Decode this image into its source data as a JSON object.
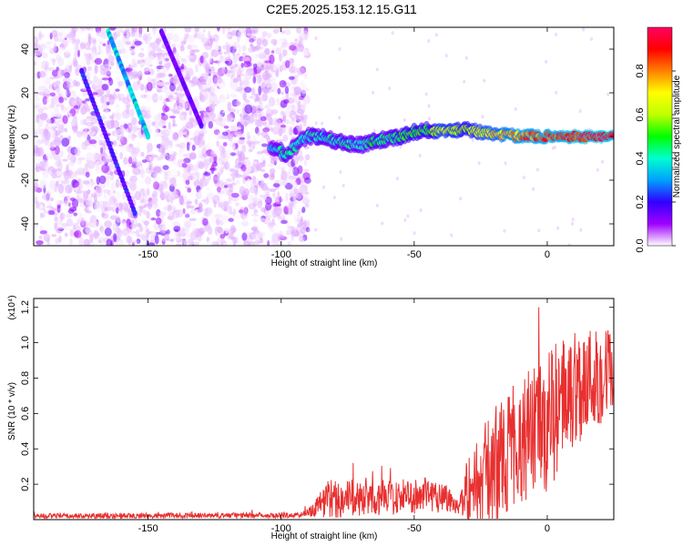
{
  "title": "C2E5.2025.153.12.15.G11",
  "chart_data": [
    {
      "type": "heatmap",
      "xlabel": "Height of straight line (km)",
      "ylabel": "Frequency (Hz)",
      "xlim": [
        -193,
        25
      ],
      "ylim": [
        -50,
        50
      ],
      "xticks": [
        -150,
        -100,
        -50,
        0
      ],
      "yticks": [
        -40,
        -20,
        0,
        20,
        40
      ],
      "colorbar": {
        "label": "Normalized spectral amplitude",
        "range": [
          0,
          1
        ],
        "ticks": [
          "0.0",
          "0.2",
          "0.4",
          "0.6",
          "0.8"
        ],
        "tick_values": [
          0.0,
          0.2,
          0.4,
          0.6,
          0.8
        ],
        "colormap": [
          "#ffffff",
          "#a000ff",
          "#3000ff",
          "#00a0ff",
          "#00ffd0",
          "#00ff00",
          "#c0ff00",
          "#ffff00",
          "#ff8000",
          "#ff0000",
          "#ff0060"
        ]
      },
      "noise_region_x": [
        -193,
        -90
      ],
      "signal_track": [
        {
          "x": -104,
          "y": -5,
          "a": 0.35
        },
        {
          "x": -98,
          "y": -8,
          "a": 0.45
        },
        {
          "x": -90,
          "y": 0,
          "a": 0.4
        },
        {
          "x": -85,
          "y": 0,
          "a": 0.45
        },
        {
          "x": -80,
          "y": -2,
          "a": 0.42
        },
        {
          "x": -75,
          "y": -3,
          "a": 0.45
        },
        {
          "x": -70,
          "y": -4,
          "a": 0.4
        },
        {
          "x": -65,
          "y": -2,
          "a": 0.5
        },
        {
          "x": -60,
          "y": -1,
          "a": 0.45
        },
        {
          "x": -55,
          "y": 0,
          "a": 0.5
        },
        {
          "x": -50,
          "y": 2,
          "a": 0.55
        },
        {
          "x": -45,
          "y": 3,
          "a": 0.5
        },
        {
          "x": -40,
          "y": 2,
          "a": 0.7
        },
        {
          "x": -35,
          "y": 3,
          "a": 0.65
        },
        {
          "x": -30,
          "y": 3,
          "a": 0.6
        },
        {
          "x": -25,
          "y": 2,
          "a": 0.7
        },
        {
          "x": -20,
          "y": 1,
          "a": 0.75
        },
        {
          "x": -15,
          "y": 1,
          "a": 0.8
        },
        {
          "x": -10,
          "y": 0,
          "a": 0.85
        },
        {
          "x": -5,
          "y": 0,
          "a": 0.85
        },
        {
          "x": 0,
          "y": 0,
          "a": 0.9
        },
        {
          "x": 5,
          "y": 0,
          "a": 0.9
        },
        {
          "x": 10,
          "y": 0,
          "a": 0.95
        },
        {
          "x": 15,
          "y": 0,
          "a": 0.95
        },
        {
          "x": 20,
          "y": 0,
          "a": 0.98
        },
        {
          "x": 25,
          "y": 0,
          "a": 0.98
        }
      ],
      "diagonal_streaks": [
        {
          "x1": -165,
          "y1": 48,
          "x2": -150,
          "y2": 0,
          "a": 0.35
        },
        {
          "x1": -175,
          "y1": 30,
          "x2": -155,
          "y2": -35,
          "a": 0.2
        },
        {
          "x1": -145,
          "y1": 48,
          "x2": -130,
          "y2": 5,
          "a": 0.15
        }
      ]
    },
    {
      "type": "line",
      "xlabel": "Height of straight line (km)",
      "ylabel": "SNR (10 * v/v)",
      "y_multiplier": "(x10⁴)",
      "xlim": [
        -193,
        25
      ],
      "ylim": [
        0,
        1.25
      ],
      "xticks": [
        -150,
        -100,
        -50,
        0
      ],
      "yticks": [
        "0.2",
        "0.4",
        "0.6",
        "0.8",
        "1.0",
        "1.2"
      ],
      "ytick_values": [
        0.2,
        0.4,
        0.6,
        0.8,
        1.0,
        1.2
      ],
      "color": "#e83030",
      "envelope": [
        {
          "x": -193,
          "base": 0.02,
          "noise": 0.015
        },
        {
          "x": -92,
          "base": 0.025,
          "noise": 0.015
        },
        {
          "x": -88,
          "base": 0.06,
          "noise": 0.04
        },
        {
          "x": -82,
          "base": 0.12,
          "noise": 0.12
        },
        {
          "x": -70,
          "base": 0.12,
          "noise": 0.1
        },
        {
          "x": -55,
          "base": 0.13,
          "noise": 0.1
        },
        {
          "x": -40,
          "base": 0.14,
          "noise": 0.1
        },
        {
          "x": -33,
          "base": 0.08,
          "noise": 0.05
        },
        {
          "x": -30,
          "base": 0.15,
          "noise": 0.2
        },
        {
          "x": -20,
          "base": 0.3,
          "noise": 0.35
        },
        {
          "x": -10,
          "base": 0.45,
          "noise": 0.35
        },
        {
          "x": 0,
          "base": 0.55,
          "noise": 0.4
        },
        {
          "x": 10,
          "base": 0.75,
          "noise": 0.35
        },
        {
          "x": 25,
          "base": 0.85,
          "noise": 0.25
        }
      ]
    }
  ]
}
